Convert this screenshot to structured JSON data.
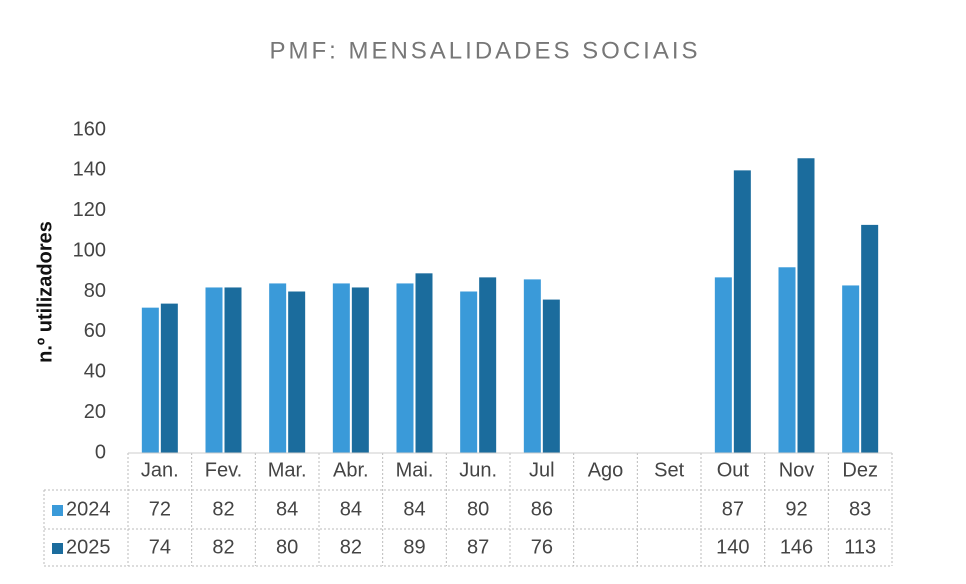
{
  "chart_data": {
    "type": "bar",
    "title": "PMF: MENSALIDADES SOCIAIS",
    "y_label": "n.º utilizadores",
    "categories": [
      "Jan.",
      "Fev.",
      "Mar.",
      "Abr.",
      "Mai.",
      "Jun.",
      "Jul",
      "Ago",
      "Set",
      "Out",
      "Nov",
      "Dez"
    ],
    "series": [
      {
        "name": "2024",
        "color": "#3a9ad9",
        "values": [
          72,
          82,
          84,
          84,
          84,
          80,
          86,
          null,
          null,
          87,
          92,
          83
        ]
      },
      {
        "name": "2025",
        "color": "#1b6c9d",
        "values": [
          74,
          82,
          80,
          82,
          89,
          87,
          76,
          null,
          null,
          140,
          146,
          113
        ]
      }
    ],
    "ylim": [
      0,
      160
    ],
    "yticks": [
      0,
      20,
      40,
      60,
      80,
      100,
      120,
      140,
      160
    ],
    "grid": false
  }
}
